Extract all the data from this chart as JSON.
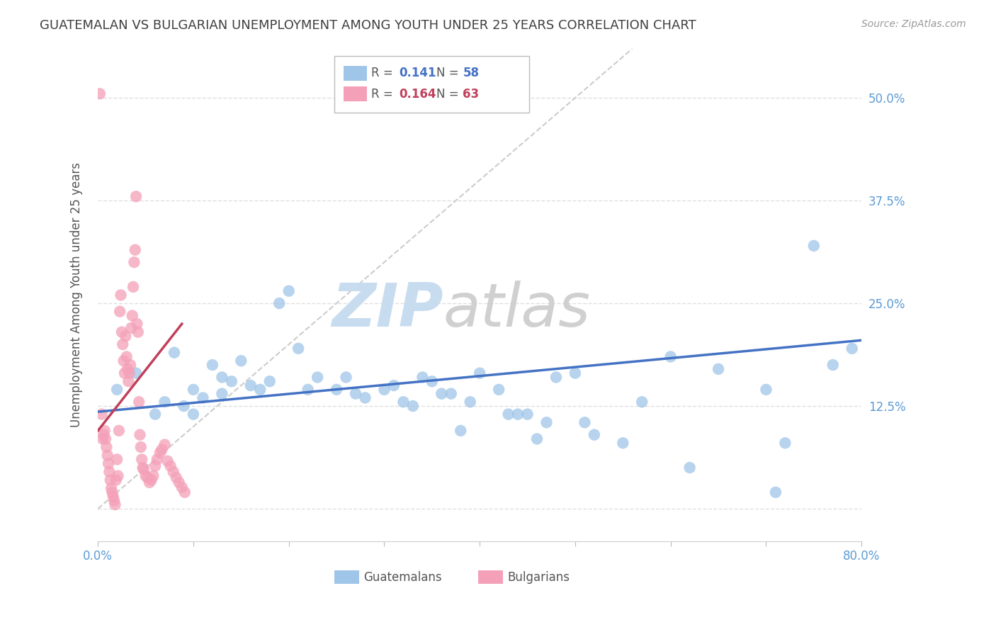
{
  "title": "GUATEMALAN VS BULGARIAN UNEMPLOYMENT AMONG YOUTH UNDER 25 YEARS CORRELATION CHART",
  "source": "Source: ZipAtlas.com",
  "ylabel": "Unemployment Among Youth under 25 years",
  "xmin": 0.0,
  "xmax": 0.8,
  "ymin": -0.04,
  "ymax": 0.56,
  "yticks": [
    0.0,
    0.125,
    0.25,
    0.375,
    0.5
  ],
  "ytick_labels": [
    "",
    "12.5%",
    "25.0%",
    "37.5%",
    "50.0%"
  ],
  "xtick_positions": [
    0.0,
    0.1,
    0.2,
    0.3,
    0.4,
    0.5,
    0.6,
    0.7,
    0.8
  ],
  "blue_color": "#9FC5E8",
  "pink_color": "#F4A0B8",
  "blue_line_color": "#4472C4",
  "pink_line_color": "#C0405A",
  "diagonal_color": "#cccccc",
  "background_color": "#ffffff",
  "grid_color": "#e0e0e0",
  "axis_label_color": "#5b9bd5",
  "title_color": "#404040",
  "watermark_zip_color": "#C8DCF0",
  "watermark_atlas_color": "#D0D0D0",
  "legend_R_blue": "0.141",
  "legend_N_blue": "58",
  "legend_R_pink": "0.164",
  "legend_N_pink": "63",
  "legend_label_blue": "Guatemalans",
  "legend_label_pink": "Bulgarians",
  "guatemalan_x": [
    0.02,
    0.04,
    0.06,
    0.07,
    0.08,
    0.09,
    0.1,
    0.1,
    0.11,
    0.12,
    0.13,
    0.13,
    0.14,
    0.15,
    0.16,
    0.17,
    0.18,
    0.19,
    0.2,
    0.21,
    0.22,
    0.23,
    0.25,
    0.26,
    0.27,
    0.28,
    0.3,
    0.31,
    0.32,
    0.33,
    0.34,
    0.35,
    0.36,
    0.37,
    0.38,
    0.39,
    0.4,
    0.42,
    0.43,
    0.44,
    0.45,
    0.46,
    0.47,
    0.48,
    0.5,
    0.51,
    0.52,
    0.55,
    0.57,
    0.6,
    0.62,
    0.65,
    0.7,
    0.71,
    0.72,
    0.75,
    0.77,
    0.79
  ],
  "guatemalan_y": [
    0.145,
    0.165,
    0.115,
    0.13,
    0.19,
    0.125,
    0.115,
    0.145,
    0.135,
    0.175,
    0.16,
    0.14,
    0.155,
    0.18,
    0.15,
    0.145,
    0.155,
    0.25,
    0.265,
    0.195,
    0.145,
    0.16,
    0.145,
    0.16,
    0.14,
    0.135,
    0.145,
    0.15,
    0.13,
    0.125,
    0.16,
    0.155,
    0.14,
    0.14,
    0.095,
    0.13,
    0.165,
    0.145,
    0.115,
    0.115,
    0.115,
    0.085,
    0.105,
    0.16,
    0.165,
    0.105,
    0.09,
    0.08,
    0.13,
    0.185,
    0.05,
    0.17,
    0.145,
    0.02,
    0.08,
    0.32,
    0.175,
    0.195
  ],
  "bulgarian_x": [
    0.002,
    0.004,
    0.005,
    0.006,
    0.007,
    0.008,
    0.009,
    0.01,
    0.011,
    0.012,
    0.013,
    0.014,
    0.015,
    0.016,
    0.017,
    0.018,
    0.019,
    0.02,
    0.021,
    0.022,
    0.023,
    0.024,
    0.025,
    0.026,
    0.027,
    0.028,
    0.029,
    0.03,
    0.031,
    0.032,
    0.033,
    0.034,
    0.035,
    0.036,
    0.037,
    0.038,
    0.039,
    0.04,
    0.041,
    0.042,
    0.043,
    0.044,
    0.045,
    0.046,
    0.047,
    0.048,
    0.05,
    0.052,
    0.054,
    0.056,
    0.058,
    0.06,
    0.062,
    0.065,
    0.067,
    0.07,
    0.073,
    0.076,
    0.079,
    0.082,
    0.085,
    0.088,
    0.091
  ],
  "bulgarian_y": [
    0.505,
    0.115,
    0.085,
    0.09,
    0.095,
    0.085,
    0.075,
    0.065,
    0.055,
    0.045,
    0.035,
    0.025,
    0.02,
    0.015,
    0.01,
    0.005,
    0.035,
    0.06,
    0.04,
    0.095,
    0.24,
    0.26,
    0.215,
    0.2,
    0.18,
    0.165,
    0.21,
    0.185,
    0.17,
    0.155,
    0.165,
    0.175,
    0.22,
    0.235,
    0.27,
    0.3,
    0.315,
    0.38,
    0.225,
    0.215,
    0.13,
    0.09,
    0.075,
    0.06,
    0.05,
    0.048,
    0.04,
    0.038,
    0.032,
    0.035,
    0.04,
    0.052,
    0.06,
    0.068,
    0.072,
    0.078,
    0.058,
    0.052,
    0.045,
    0.038,
    0.032,
    0.026,
    0.02
  ]
}
